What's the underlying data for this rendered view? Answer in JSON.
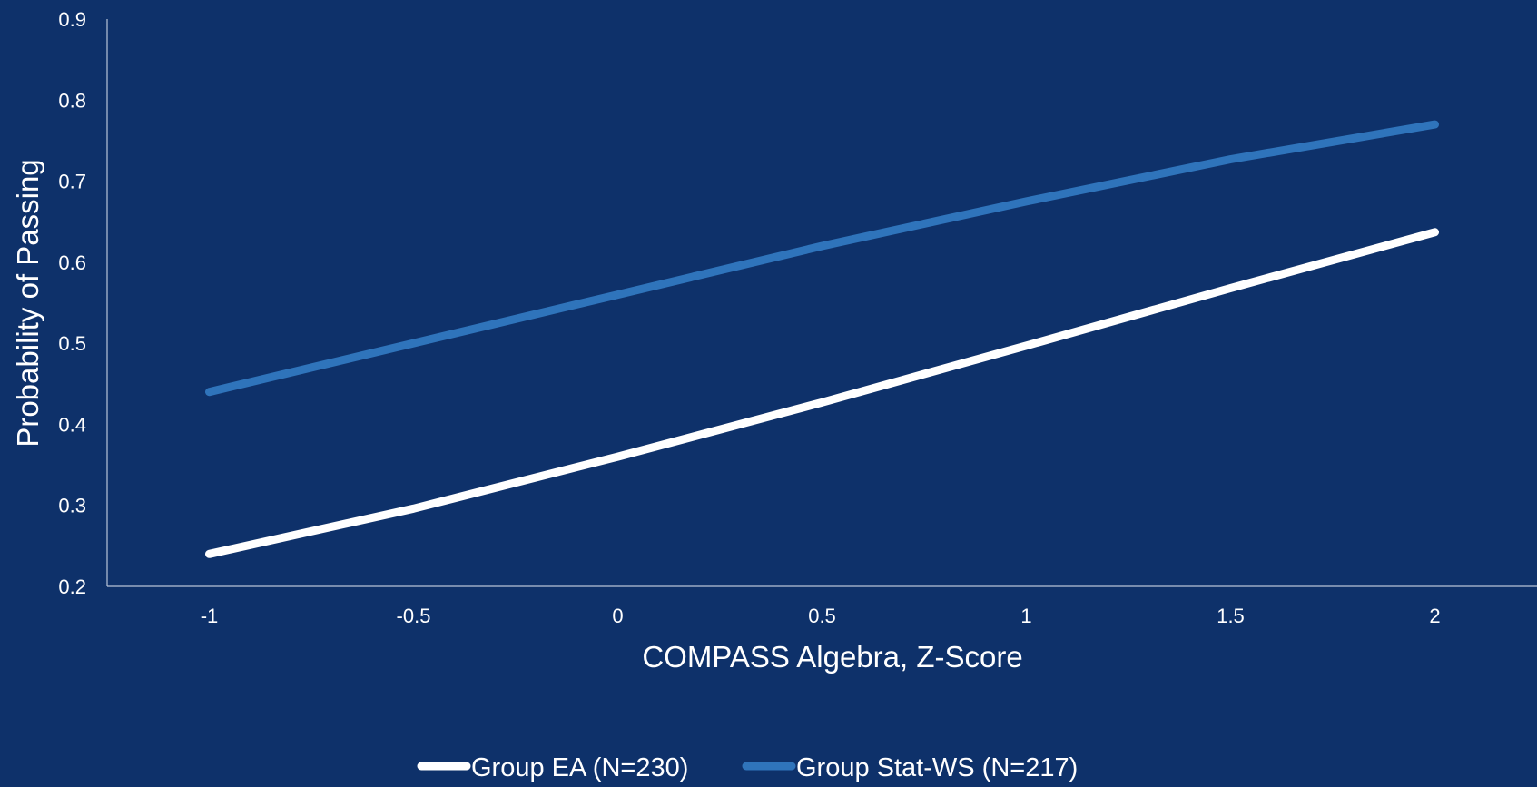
{
  "chart_data": {
    "type": "line",
    "title": "",
    "xlabel": "COMPASS Algebra, Z-Score",
    "ylabel": "Probability of Passing",
    "x": [
      -1,
      -0.5,
      0,
      0.5,
      1,
      1.5,
      2
    ],
    "x_tick_labels": [
      "-1",
      "-0.5",
      "0",
      "0.5",
      "1",
      "1.5",
      "2"
    ],
    "y_tick_labels": [
      "0.2",
      "0.3",
      "0.4",
      "0.5",
      "0.6",
      "0.7",
      "0.8",
      "0.9"
    ],
    "xlim": [
      -1.25,
      2.25
    ],
    "ylim": [
      0.2,
      0.9
    ],
    "grid": false,
    "legend_position": "bottom",
    "series": [
      {
        "name": "Group EA (N=230)",
        "color": "#ffffff",
        "values": [
          0.24,
          0.296,
          0.36,
          0.427,
          0.497,
          0.568,
          0.637
        ]
      },
      {
        "name": "Group Stat-WS (N=217)",
        "color": "#2f74bb",
        "values": [
          0.44,
          0.5,
          0.56,
          0.62,
          0.675,
          0.727,
          0.77
        ]
      }
    ],
    "colors": {
      "background": "#0e316a",
      "axis": "#b8c4d8",
      "text": "#ffffff"
    }
  }
}
